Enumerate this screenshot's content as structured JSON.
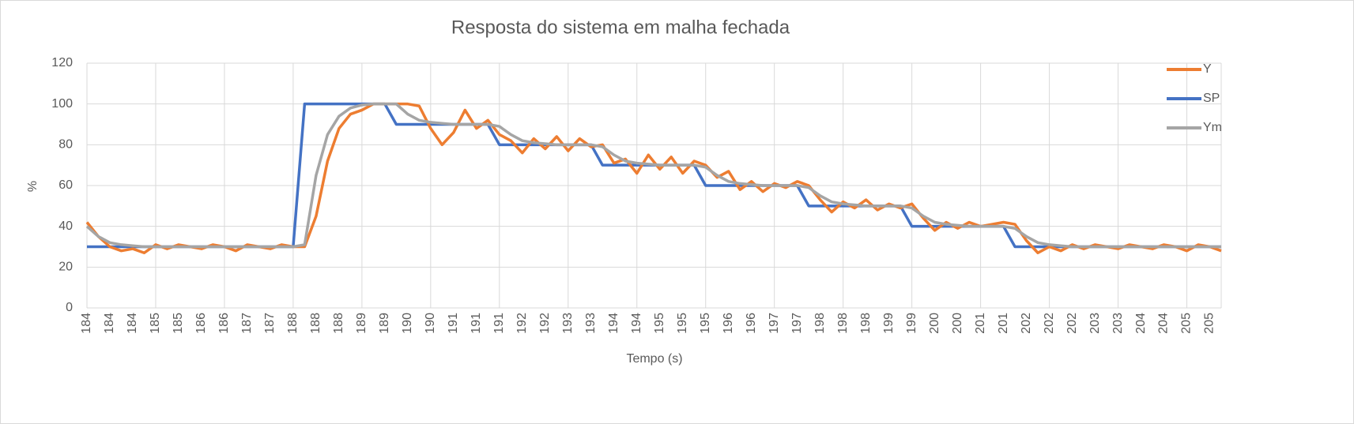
{
  "chart_data": {
    "type": "line",
    "title": "Resposta do sistema em malha fechada",
    "x_label": "Tempo (s)",
    "y_label": "%",
    "categories": [
      "184",
      null,
      "184",
      null,
      "184",
      null,
      "185",
      null,
      "185",
      null,
      "186",
      null,
      "186",
      null,
      "187",
      null,
      "187",
      null,
      "188",
      null,
      "188",
      null,
      "188",
      null,
      "189",
      null,
      "189",
      null,
      "190",
      null,
      "190",
      null,
      "191",
      null,
      "191",
      null,
      "191",
      null,
      "192",
      null,
      "192",
      null,
      "193",
      null,
      "193",
      null,
      "194",
      null,
      "194",
      null,
      "195",
      null,
      "195",
      null,
      "195",
      null,
      "196",
      null,
      "196",
      null,
      "197",
      null,
      "197",
      null,
      "198",
      null,
      "198",
      null,
      "198",
      null,
      "199",
      null,
      "199",
      null,
      "200",
      null,
      "200",
      null,
      "201",
      null,
      "201",
      null,
      "202",
      null,
      "202",
      null,
      "202",
      null,
      "203",
      null,
      "203",
      null,
      "204",
      null,
      "204",
      null,
      "205",
      null,
      "205",
      null
    ],
    "series": [
      {
        "name": "Y",
        "color": "#ED7D31",
        "values": [
          42,
          35,
          30,
          28,
          29,
          27,
          31,
          29,
          31,
          30,
          29,
          31,
          30,
          28,
          31,
          30,
          29,
          31,
          30,
          30,
          45,
          72,
          88,
          95,
          97,
          100,
          100,
          100,
          100,
          99,
          88,
          80,
          86,
          97,
          88,
          92,
          85,
          82,
          76,
          83,
          78,
          84,
          77,
          83,
          79,
          80,
          71,
          73,
          66,
          75,
          68,
          74,
          66,
          72,
          70,
          64,
          67,
          58,
          62,
          57,
          61,
          59,
          62,
          60,
          53,
          47,
          52,
          49,
          53,
          48,
          51,
          49,
          51,
          44,
          38,
          42,
          39,
          42,
          40,
          41,
          42,
          41,
          33,
          27,
          30,
          28,
          31,
          29,
          31,
          30,
          29,
          31,
          30,
          29,
          31,
          30,
          28,
          31,
          30,
          28
        ]
      },
      {
        "name": "SP",
        "color": "#4472C4",
        "values": [
          30,
          30,
          30,
          30,
          30,
          30,
          30,
          30,
          30,
          30,
          30,
          30,
          30,
          30,
          30,
          30,
          30,
          30,
          30,
          100,
          100,
          100,
          100,
          100,
          100,
          100,
          100,
          90,
          90,
          90,
          90,
          90,
          90,
          90,
          90,
          90,
          80,
          80,
          80,
          80,
          80,
          80,
          80,
          80,
          80,
          70,
          70,
          70,
          70,
          70,
          70,
          70,
          70,
          70,
          60,
          60,
          60,
          60,
          60,
          60,
          60,
          60,
          60,
          50,
          50,
          50,
          50,
          50,
          50,
          50,
          50,
          50,
          40,
          40,
          40,
          40,
          40,
          40,
          40,
          40,
          40,
          30,
          30,
          30,
          30,
          30,
          30,
          30,
          30,
          30,
          30,
          30,
          30,
          30,
          30,
          30,
          30,
          30,
          30,
          30
        ]
      },
      {
        "name": "Ym",
        "color": "#A5A5A5",
        "values": [
          40,
          35,
          32,
          31,
          30.5,
          30,
          30,
          30,
          30,
          30,
          30,
          30,
          30,
          30,
          30,
          30,
          30,
          30,
          30,
          31,
          65,
          85,
          94,
          98,
          99.5,
          100,
          100,
          100,
          95,
          92,
          91,
          90.5,
          90,
          90,
          90,
          90,
          89,
          85,
          82,
          81,
          80.5,
          80,
          80,
          80,
          80,
          79,
          75,
          72,
          71,
          70.5,
          70,
          70,
          70,
          70,
          69,
          65,
          62,
          61,
          60.5,
          60,
          60,
          60,
          60,
          59,
          55,
          52,
          51,
          50.5,
          50,
          50,
          50,
          50,
          49,
          45,
          42,
          41,
          40.5,
          40,
          40,
          40,
          40,
          39,
          35,
          32,
          31,
          30.5,
          30,
          30,
          30,
          30,
          30,
          30,
          30,
          30,
          30,
          30,
          30,
          30,
          30,
          30
        ]
      }
    ],
    "ylim": [
      0,
      120
    ],
    "yticks": [
      0,
      20,
      40,
      60,
      80,
      100,
      120
    ],
    "grid": true,
    "legend": "right"
  }
}
